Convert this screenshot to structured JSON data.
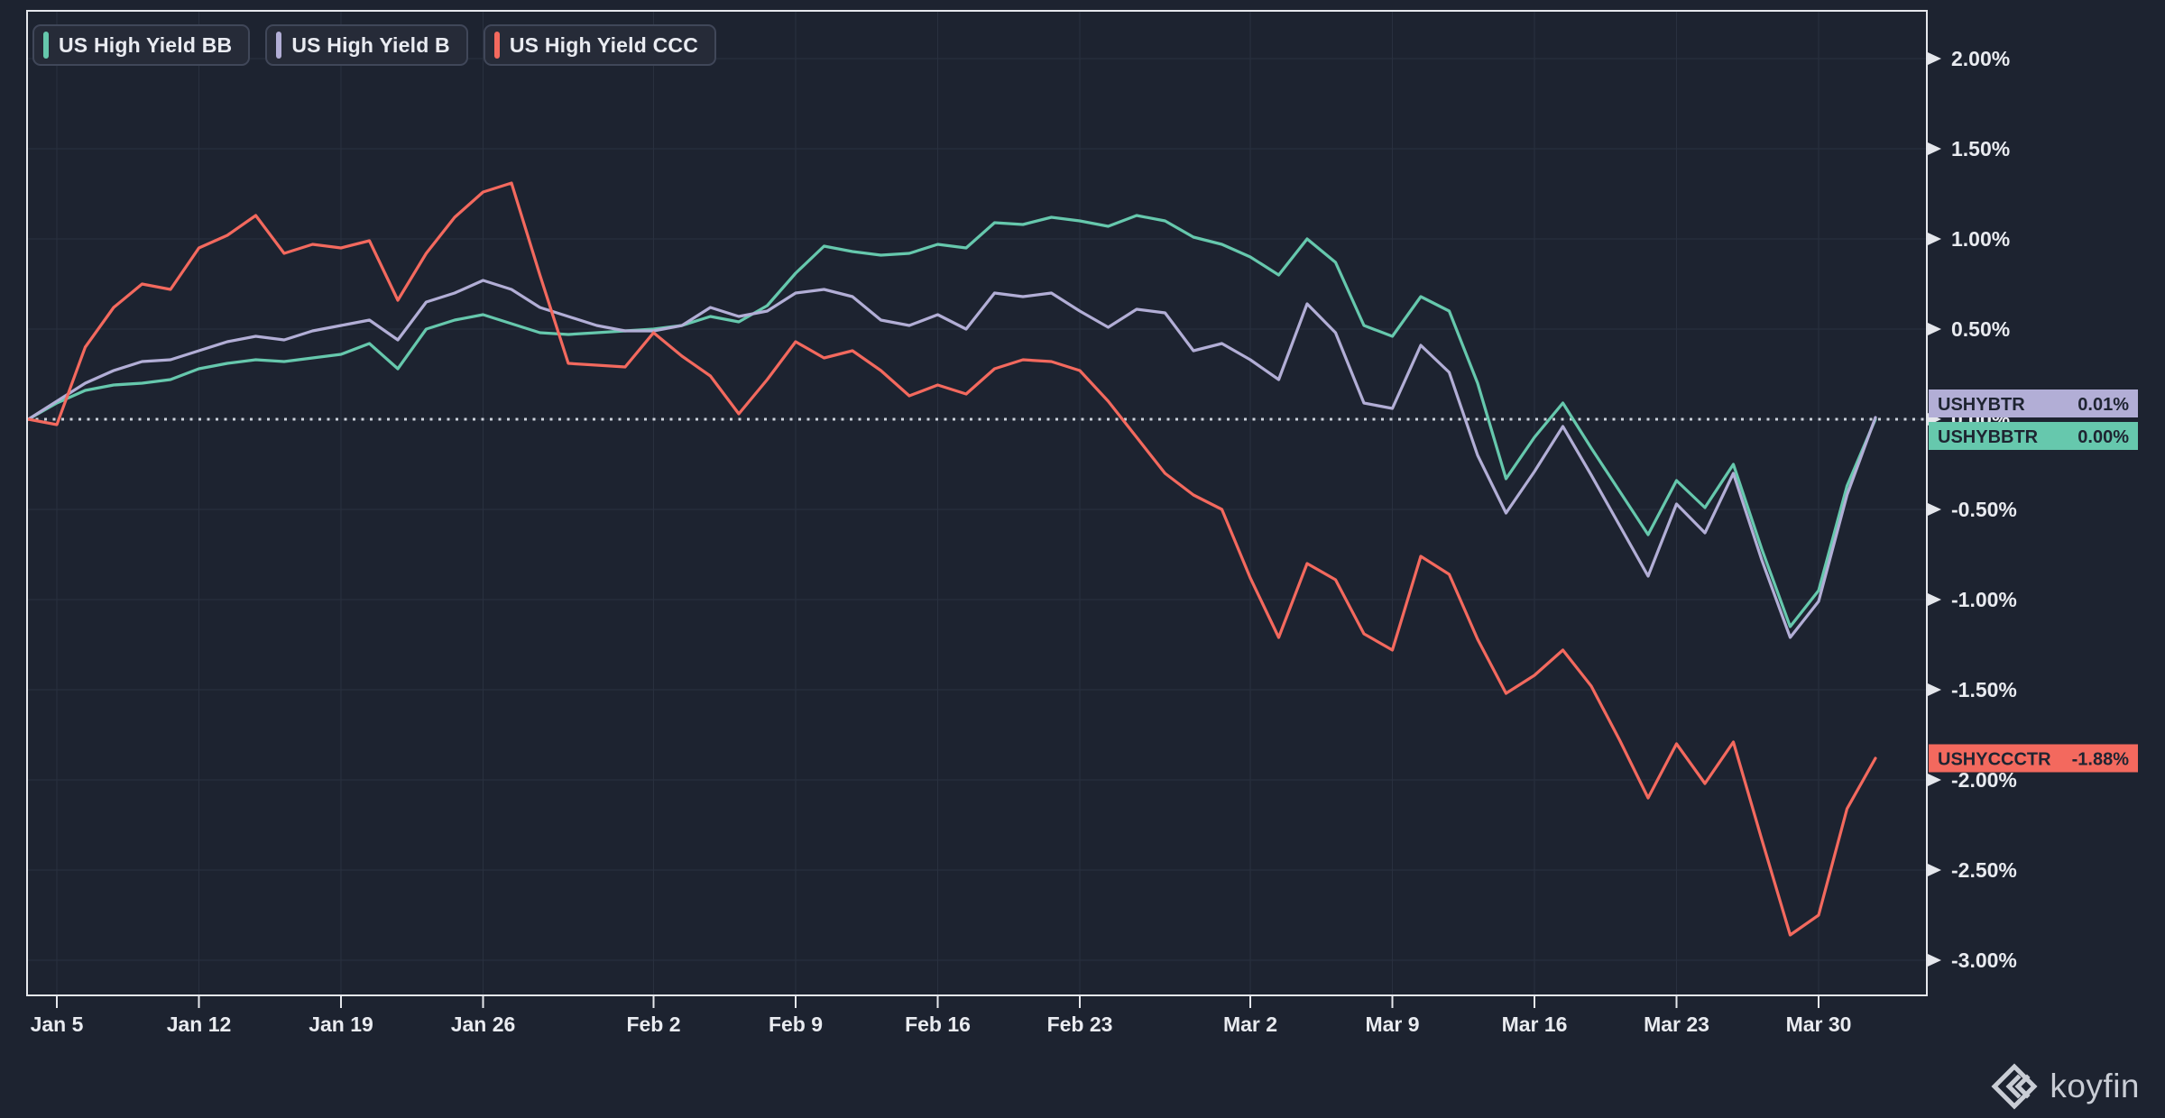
{
  "legend": [
    {
      "label": "US High Yield BB",
      "color": "#66c8ad"
    },
    {
      "label": "US High Yield B",
      "color": "#b2aed6"
    },
    {
      "label": "US High Yield CCC",
      "color": "#f3695e"
    }
  ],
  "watermark": {
    "text": "koyfin"
  },
  "colors": {
    "background": "#1d2330",
    "grid": "#29303f",
    "frame": "#e5e7ec",
    "axis_text": "#e9ebf0",
    "zero_line": "#ccd1da",
    "flag_text": "#1e2431"
  },
  "chart_data": {
    "type": "line",
    "title": "",
    "xlabel": "",
    "ylabel": "",
    "y_axis": {
      "min": -3.0,
      "max": 2.0,
      "step": 0.5,
      "format": "percent_2dp"
    },
    "zero_reference_line": true,
    "x_tick_labels": [
      "Jan 5",
      "Jan 12",
      "Jan 19",
      "Jan 26",
      "Feb 2",
      "Feb 9",
      "Feb 16",
      "Feb 23",
      "Mar 2",
      "Mar 9",
      "Mar 16",
      "Mar 23",
      "Mar 30"
    ],
    "x_tick_day_index": [
      1,
      6,
      11,
      16,
      22,
      27,
      32,
      37,
      43,
      48,
      53,
      58,
      63
    ],
    "num_points": 66,
    "series": [
      {
        "name": "US High Yield BB",
        "ticker": "USHYBBTR",
        "color": "#66c8ad",
        "last_value_label": "0.00%",
        "values": [
          0.0,
          0.09,
          0.16,
          0.19,
          0.2,
          0.22,
          0.28,
          0.31,
          0.33,
          0.32,
          0.34,
          0.36,
          0.42,
          0.28,
          0.5,
          0.55,
          0.58,
          0.53,
          0.48,
          0.47,
          0.48,
          0.49,
          0.5,
          0.52,
          0.57,
          0.54,
          0.63,
          0.81,
          0.96,
          0.93,
          0.91,
          0.92,
          0.97,
          0.95,
          1.09,
          1.08,
          1.12,
          1.1,
          1.07,
          1.13,
          1.1,
          1.01,
          0.97,
          0.9,
          0.8,
          1.0,
          0.87,
          0.52,
          0.46,
          0.68,
          0.6,
          0.2,
          -0.33,
          -0.1,
          0.09,
          -0.16,
          -0.4,
          -0.64,
          -0.34,
          -0.49,
          -0.25,
          -0.72,
          -1.15,
          -0.95,
          -0.37,
          0.0
        ]
      },
      {
        "name": "US High Yield B",
        "ticker": "USHYBTR",
        "color": "#b2aed6",
        "last_value_label": "0.01%",
        "values": [
          0.0,
          0.1,
          0.2,
          0.27,
          0.32,
          0.33,
          0.38,
          0.43,
          0.46,
          0.44,
          0.49,
          0.52,
          0.55,
          0.44,
          0.65,
          0.7,
          0.77,
          0.72,
          0.62,
          0.57,
          0.52,
          0.49,
          0.49,
          0.52,
          0.62,
          0.57,
          0.6,
          0.7,
          0.72,
          0.68,
          0.55,
          0.52,
          0.58,
          0.5,
          0.7,
          0.68,
          0.7,
          0.6,
          0.51,
          0.61,
          0.59,
          0.38,
          0.42,
          0.33,
          0.22,
          0.64,
          0.48,
          0.09,
          0.06,
          0.41,
          0.26,
          -0.2,
          -0.52,
          -0.29,
          -0.04,
          -0.31,
          -0.59,
          -0.87,
          -0.47,
          -0.63,
          -0.3,
          -0.78,
          -1.21,
          -1.01,
          -0.42,
          0.01
        ]
      },
      {
        "name": "US High Yield CCC",
        "ticker": "USHYCCCTR",
        "color": "#f3695e",
        "last_value_label": "-1.88%",
        "values": [
          0.0,
          -0.03,
          0.4,
          0.62,
          0.75,
          0.72,
          0.95,
          1.02,
          1.13,
          0.92,
          0.97,
          0.95,
          0.99,
          0.66,
          0.92,
          1.12,
          1.26,
          1.31,
          0.8,
          0.31,
          0.3,
          0.29,
          0.48,
          0.35,
          0.24,
          0.03,
          0.22,
          0.43,
          0.34,
          0.38,
          0.27,
          0.13,
          0.19,
          0.14,
          0.28,
          0.33,
          0.32,
          0.27,
          0.1,
          -0.1,
          -0.3,
          -0.42,
          -0.5,
          -0.88,
          -1.21,
          -0.8,
          -0.89,
          -1.19,
          -1.28,
          -0.76,
          -0.86,
          -1.22,
          -1.52,
          -1.42,
          -1.28,
          -1.48,
          -1.78,
          -2.1,
          -1.8,
          -2.02,
          -1.79,
          -2.33,
          -2.86,
          -2.75,
          -2.16,
          -1.88
        ]
      }
    ],
    "price_flags": [
      {
        "ticker": "USHYBTR",
        "value_label": "0.01%",
        "color": "#b2aed6",
        "anchor_value": 0.01,
        "align": "above"
      },
      {
        "ticker": "USHYBBTR",
        "value_label": "0.00%",
        "color": "#66c8ad",
        "anchor_value": 0.0,
        "align": "below"
      },
      {
        "ticker": "USHYCCCTR",
        "value_label": "-1.88%",
        "color": "#f3695e",
        "anchor_value": -1.88,
        "align": "center"
      }
    ]
  }
}
